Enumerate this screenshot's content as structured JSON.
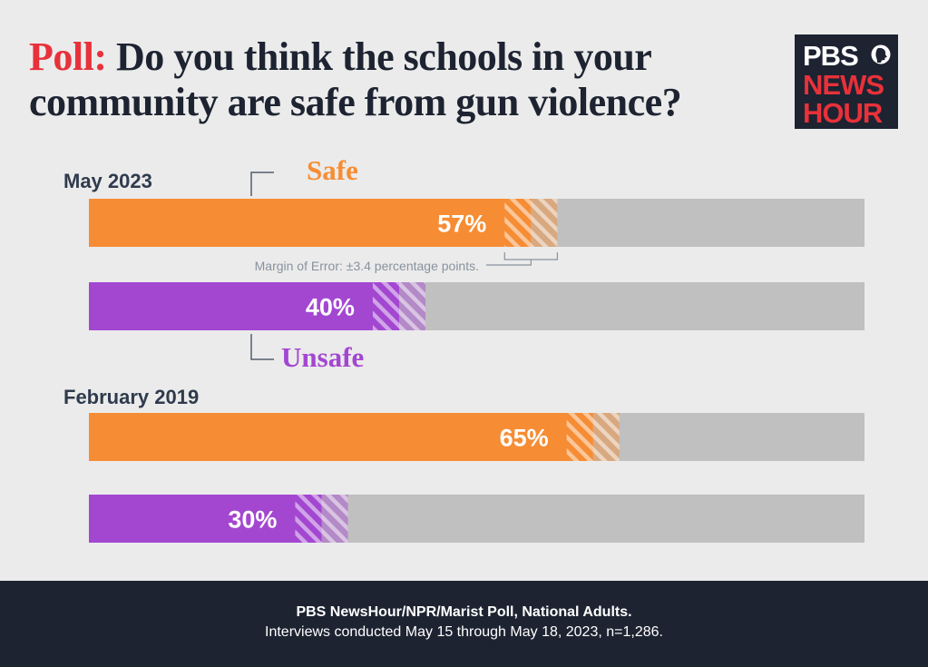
{
  "header": {
    "title_prefix": "Poll:",
    "title_rest": " Do you think the schools in your community are safe from gun violence?"
  },
  "logo": {
    "line1": "PBS",
    "line2": "NEWS",
    "line3": "HOUR"
  },
  "chart_data": {
    "type": "bar",
    "orientation": "horizontal",
    "title": "Poll: Do you think the schools in your community are safe from gun violence?",
    "xlim": [
      0,
      100
    ],
    "margin_of_error": 3.4,
    "margin_note": "Margin of Error: ±3.4 percentage points.",
    "categories": [
      "May 2023",
      "February 2019"
    ],
    "series": [
      {
        "name": "Safe",
        "color": "#f68d34",
        "values": [
          57,
          65
        ],
        "labels": [
          "57%",
          "65%"
        ]
      },
      {
        "name": "Unsafe",
        "color": "#a347d1",
        "values": [
          40,
          30
        ],
        "labels": [
          "40%",
          "30%"
        ]
      }
    ],
    "track_color": "#c0c0c0",
    "grid": false,
    "legend": "inline"
  },
  "footer": {
    "source": "PBS NewsHour/NPR/Marist Poll, National Adults.",
    "note": "Interviews conducted May 15 through May 18, 2023, n=1,286."
  }
}
